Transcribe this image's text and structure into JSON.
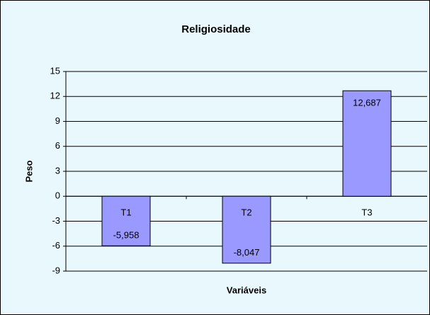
{
  "chart_data": {
    "type": "bar",
    "title": "Religiosidade",
    "x_label": "Variáveis",
    "y_label": "Peso",
    "categories": [
      "T1",
      "T2",
      "T3"
    ],
    "values": [
      -5.958,
      -8.047,
      12.687
    ],
    "value_labels": [
      "-5,958",
      "-8,047",
      "12,687"
    ],
    "color": "#9999ff",
    "ylim": [
      -9,
      15
    ],
    "yticks": [
      -9,
      -6,
      -3,
      0,
      3,
      6,
      9,
      12,
      15
    ],
    "grid": true
  }
}
